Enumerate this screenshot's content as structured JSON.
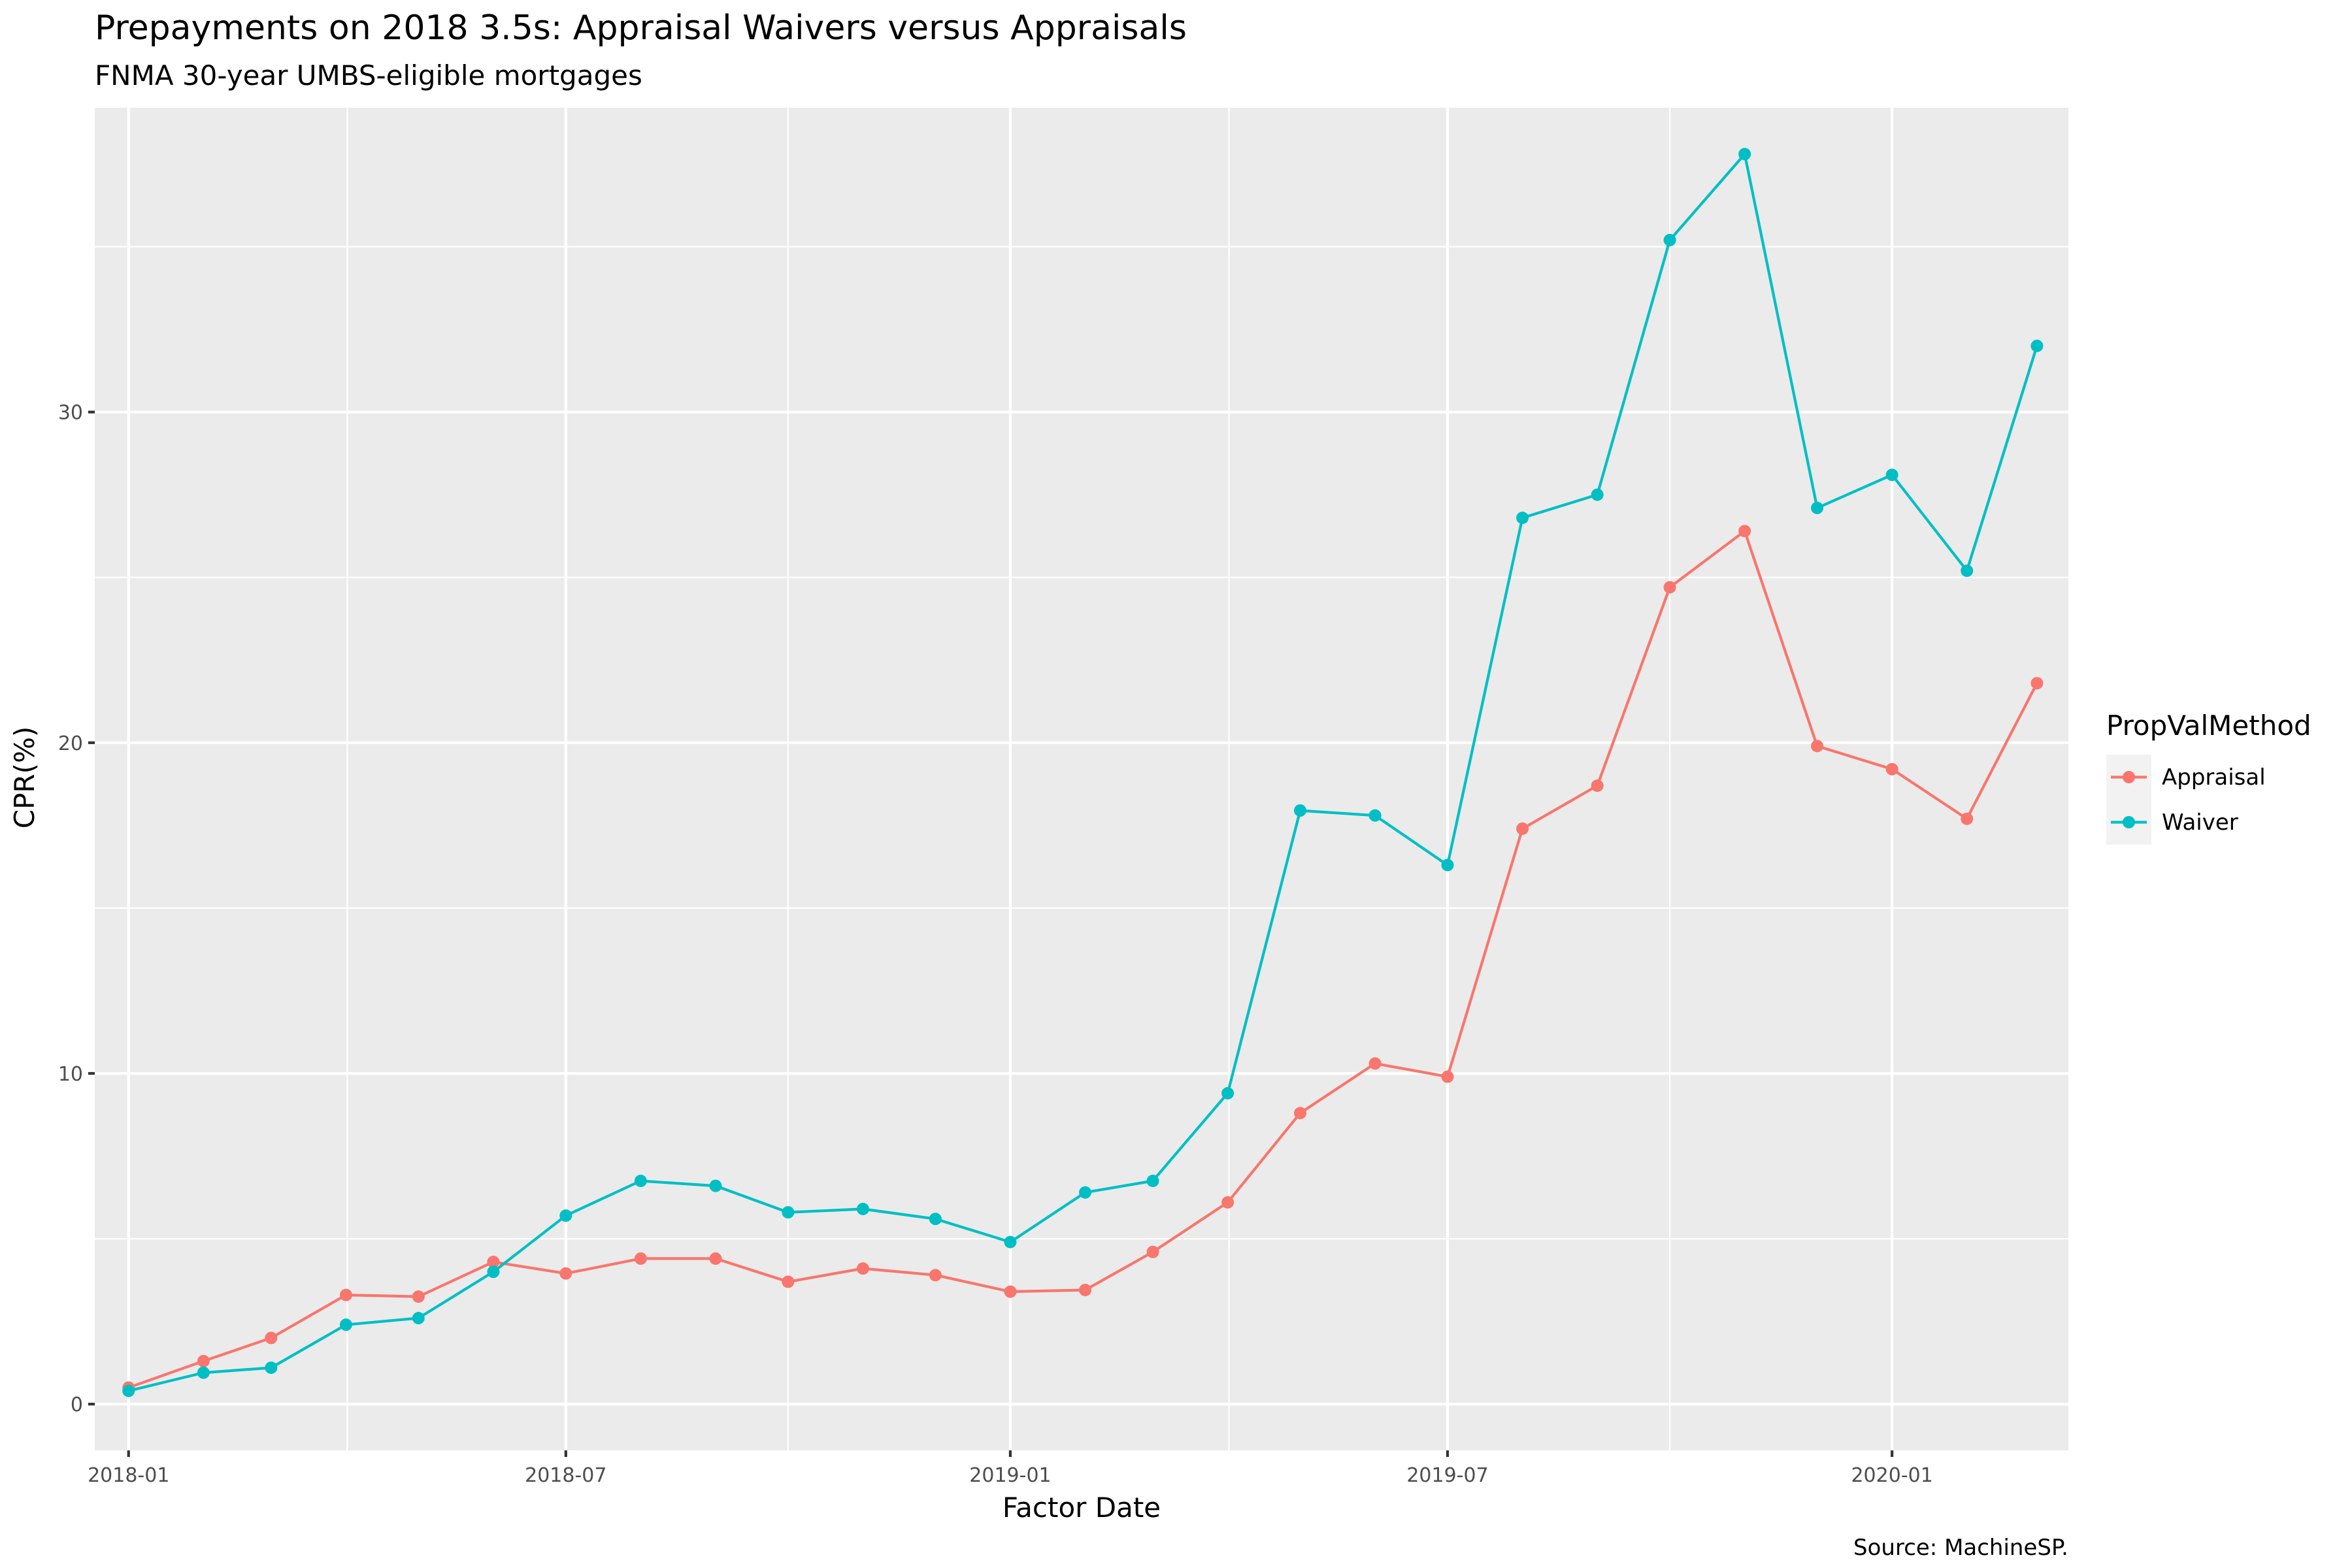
{
  "chart_data": {
    "type": "line",
    "title": "Prepayments on 2018 3.5s: Appraisal Waivers versus Appraisals",
    "subtitle": "FNMA 30-year UMBS-eligible mortgages",
    "xlabel": "Factor Date",
    "ylabel": "CPR(%)",
    "caption": "Source: MachineSP.",
    "legend_title": "PropValMethod",
    "legend_position": "right",
    "grid": true,
    "xlim": [
      "2017-12-18",
      "2020-03-14"
    ],
    "ylim": [
      -1.4,
      39.2
    ],
    "x_ticks": [
      {
        "date": "2018-01-01",
        "label": "2018-01"
      },
      {
        "date": "2018-07-01",
        "label": "2018-07"
      },
      {
        "date": "2019-01-01",
        "label": "2019-01"
      },
      {
        "date": "2019-07-01",
        "label": "2019-07"
      },
      {
        "date": "2020-01-01",
        "label": "2020-01"
      }
    ],
    "y_ticks": [
      0,
      10,
      20,
      30
    ],
    "x": [
      "2018-01-01",
      "2018-02-01",
      "2018-03-01",
      "2018-04-01",
      "2018-05-01",
      "2018-06-01",
      "2018-07-01",
      "2018-08-01",
      "2018-09-01",
      "2018-10-01",
      "2018-11-01",
      "2018-12-01",
      "2019-01-01",
      "2019-02-01",
      "2019-03-01",
      "2019-04-01",
      "2019-05-01",
      "2019-06-01",
      "2019-07-01",
      "2019-08-01",
      "2019-09-01",
      "2019-10-01",
      "2019-11-01",
      "2019-12-01",
      "2020-01-01",
      "2020-02-01",
      "2020-03-01"
    ],
    "series": [
      {
        "name": "Appraisal",
        "color": "#F8766D",
        "values": [
          0.5,
          1.3,
          2.0,
          3.3,
          3.25,
          4.3,
          3.95,
          4.4,
          4.4,
          3.7,
          4.1,
          3.9,
          3.4,
          3.45,
          4.6,
          6.1,
          8.8,
          10.3,
          9.9,
          17.4,
          18.7,
          24.7,
          26.4,
          19.9,
          19.2,
          17.7,
          21.8
        ]
      },
      {
        "name": "Waiver",
        "color": "#00BFC4",
        "values": [
          0.4,
          0.95,
          1.1,
          2.4,
          2.6,
          4.0,
          5.7,
          6.75,
          6.6,
          5.8,
          5.9,
          5.6,
          4.9,
          6.4,
          6.75,
          9.4,
          17.95,
          17.8,
          16.3,
          26.8,
          27.5,
          35.2,
          37.8,
          27.1,
          28.1,
          25.2,
          32.0
        ]
      }
    ]
  }
}
